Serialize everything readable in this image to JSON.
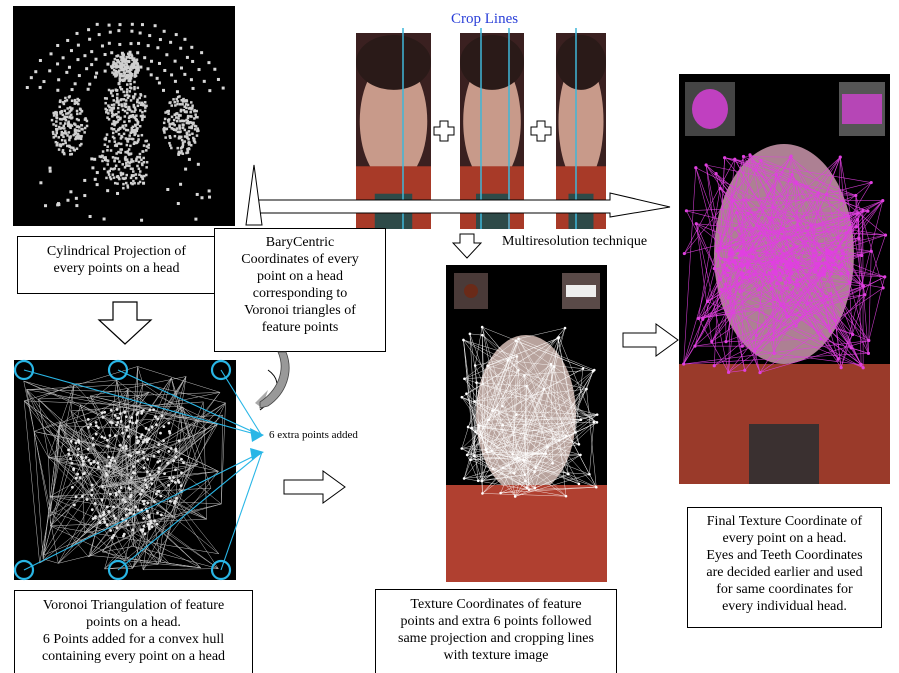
{
  "title": "Crop Lines",
  "captions": {
    "cylindrical": "Cylindrical Projection of\nevery points on a head",
    "barycentric": "BaryCentric\nCoordinates of every\npoint on a head\ncorresponding to\nVoronoi triangles of\nfeature points",
    "voronoi": "Voronoi Triangulation of feature\npoints on a head.\n6 Points added for a convex hull\ncontaining every point on a head",
    "texture": "Texture Coordinates of feature\npoints and extra 6 points followed\nsame projection and cropping lines\nwith texture image",
    "final": "Final Texture Coordinate of\nevery point on a head.\nEyes and Teeth Coordinates\nare decided earlier and used\nfor same coordinates for\nevery individual head."
  },
  "labels": {
    "multires": "Multiresolution technique",
    "extra_points": "6 extra points added"
  },
  "colors": {
    "crop_line": "#3fb6d8",
    "mesh_magenta": "#e040e0",
    "circle": "#29b6e6",
    "title_blue": "#2a3fd8"
  }
}
